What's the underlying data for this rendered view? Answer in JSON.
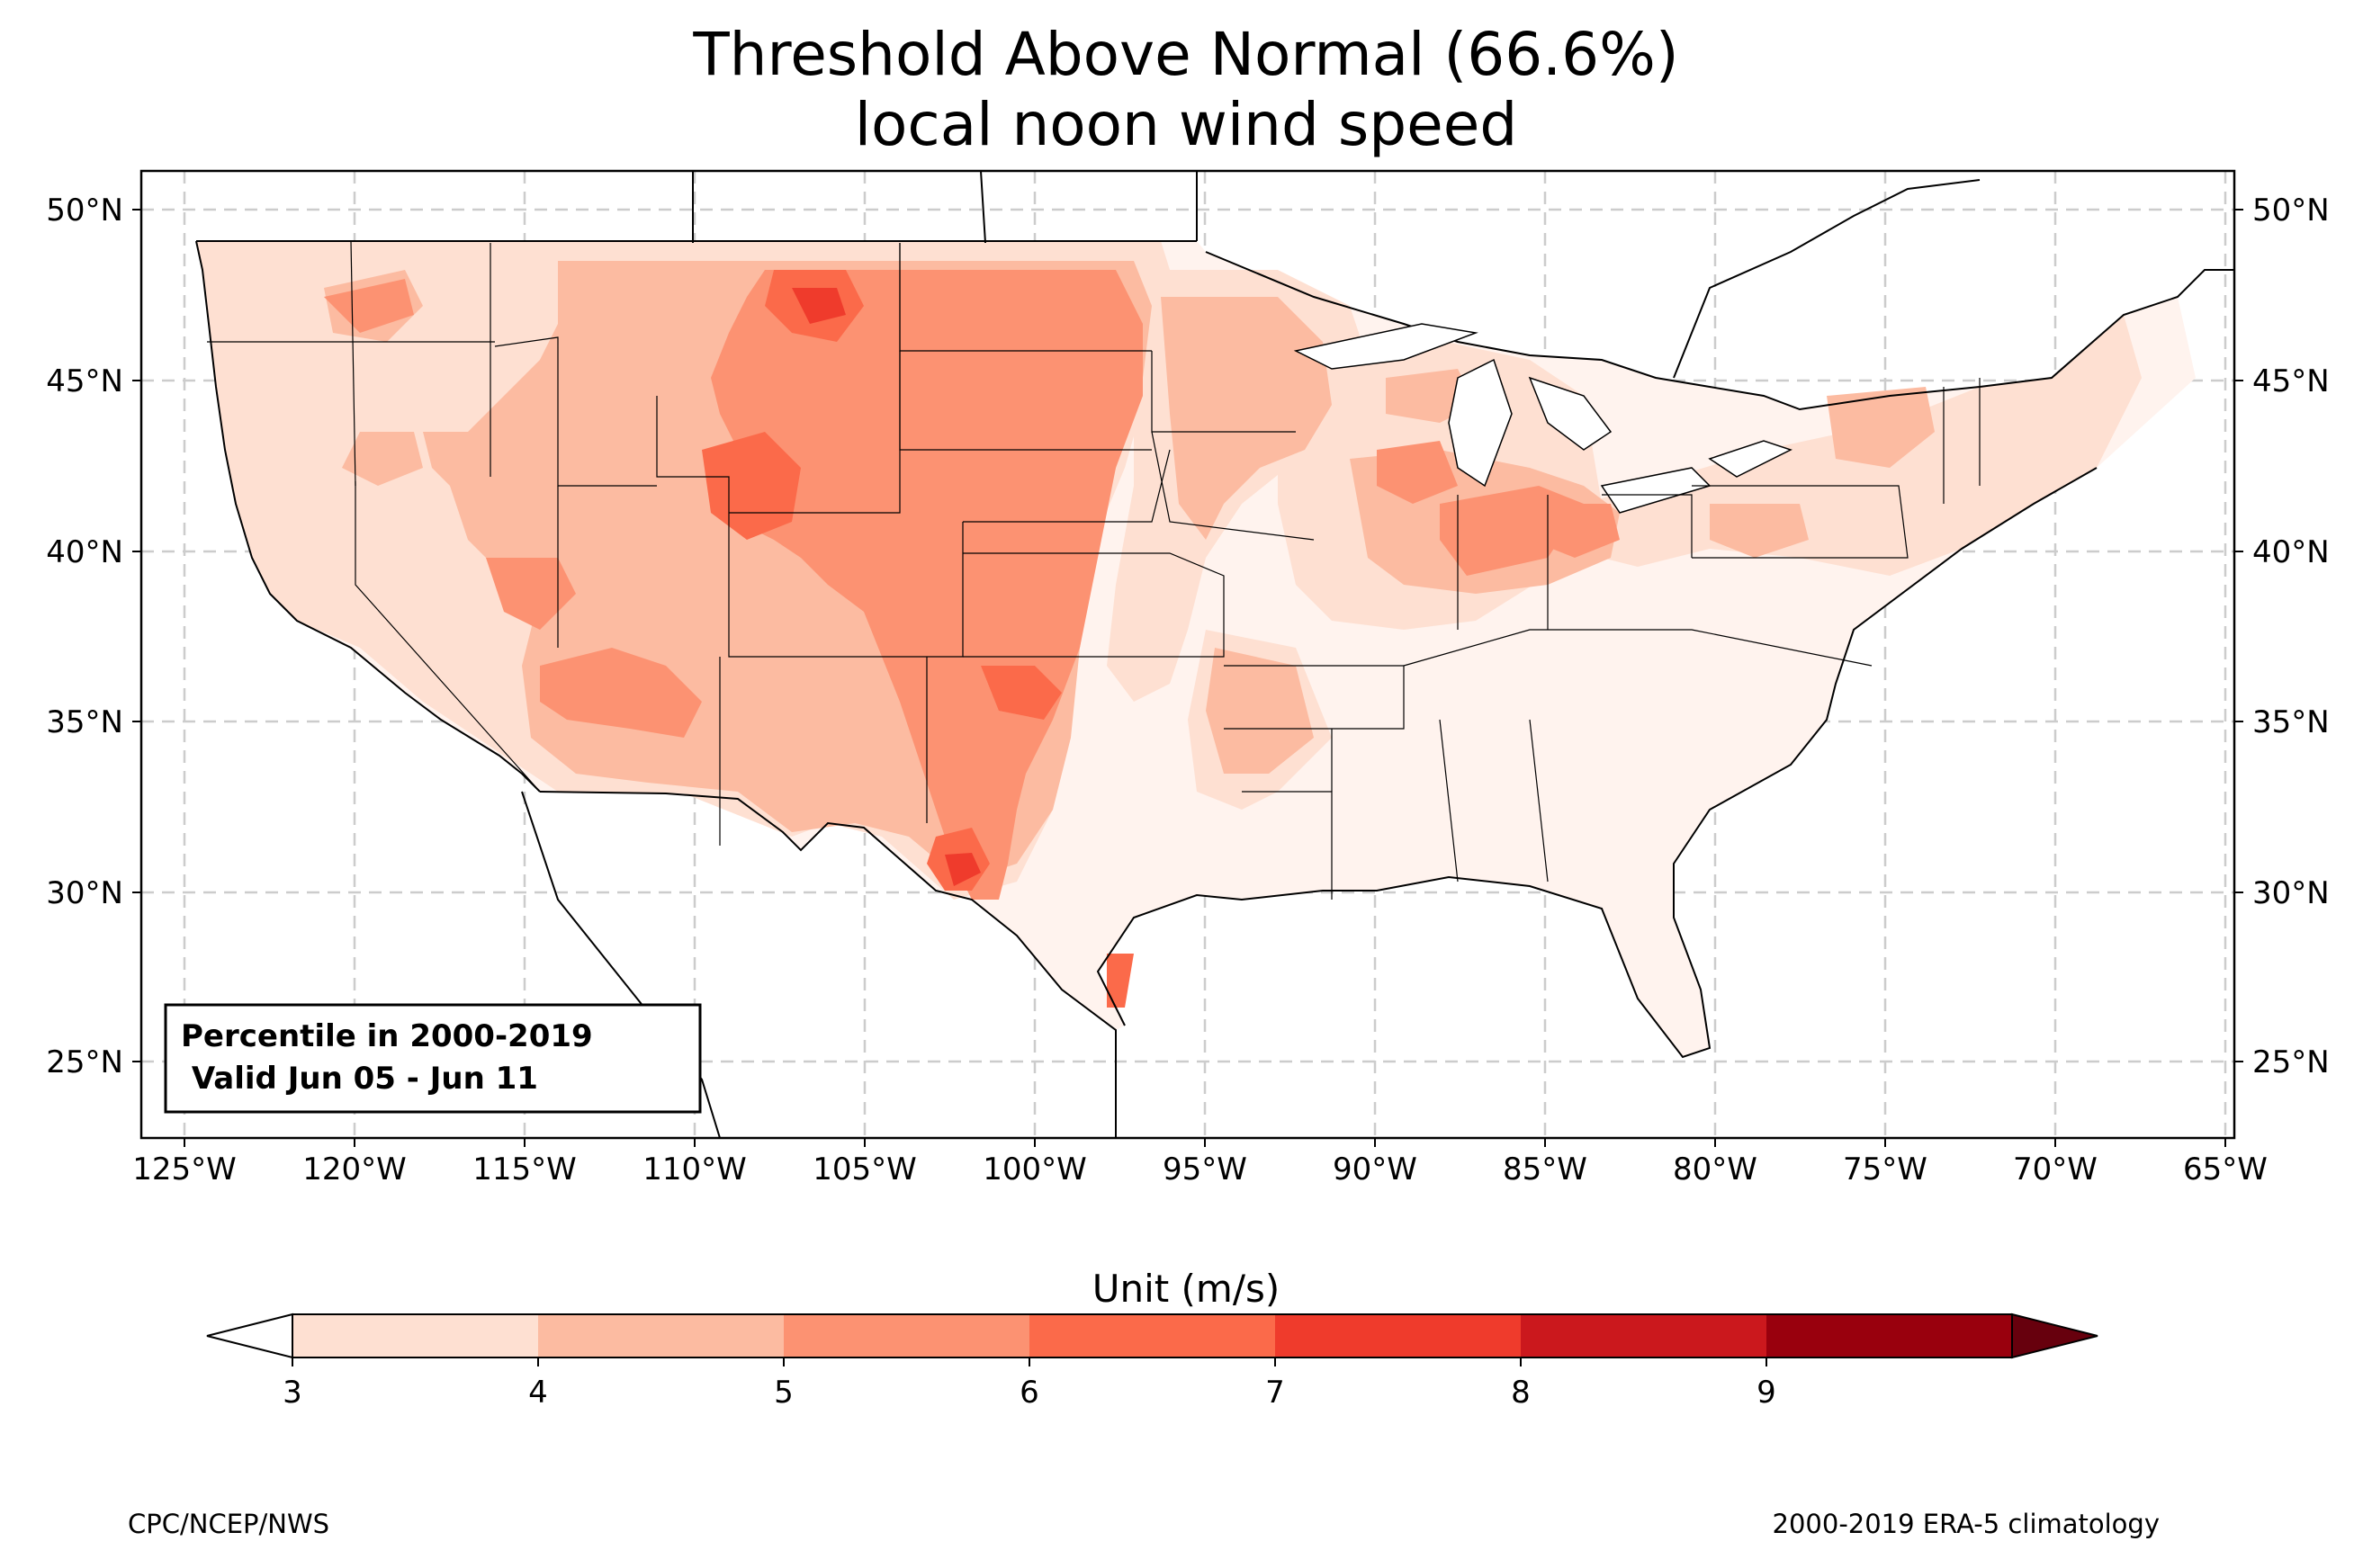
{
  "title": {
    "line1": "Threshold Above Normal (66.6%)",
    "line2": "local noon wind speed"
  },
  "map": {
    "lat_labels": [
      "50°N",
      "45°N",
      "40°N",
      "35°N",
      "30°N",
      "25°N"
    ],
    "lon_labels": [
      "125°W",
      "120°W",
      "115°W",
      "110°W",
      "105°W",
      "100°W",
      "95°W",
      "90°W",
      "85°W",
      "80°W",
      "75°W",
      "70°W",
      "65°W"
    ],
    "info_box": {
      "line1": "Percentile in 2000-2019",
      "line2": " Valid Jun 05 - Jun 11"
    }
  },
  "colorbar": {
    "title": "Unit (m/s)",
    "ticks": [
      "3",
      "4",
      "5",
      "6",
      "7",
      "8",
      "9"
    ],
    "colors": [
      "#fee0d2",
      "#fcbba1",
      "#fc9272",
      "#fb6a4a",
      "#ef3b2c",
      "#cb181d",
      "#99000d"
    ],
    "under_color": "#ffffff",
    "over_color": "#67000d"
  },
  "footer": {
    "left": "CPC/NCEP/NWS",
    "right": "2000-2019 ERA-5 climatology"
  }
}
